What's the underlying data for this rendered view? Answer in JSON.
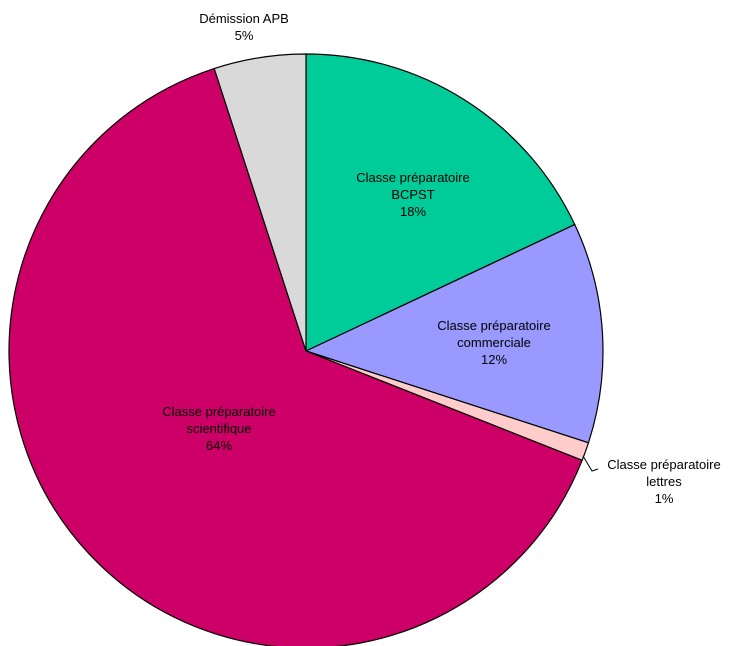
{
  "chart_data": {
    "type": "pie",
    "title": "",
    "legend": "none",
    "start_angle_deg": 0,
    "direction": "clockwise",
    "slices": [
      {
        "label": [
          "Classe préparatoire",
          "BCPST"
        ],
        "pct_text": "18%",
        "value": 18,
        "color": "#00CC99"
      },
      {
        "label": [
          "Classe préparatoire",
          "commerciale"
        ],
        "pct_text": "12%",
        "value": 12,
        "color": "#9999FF"
      },
      {
        "label": [
          "Classe préparatoire",
          "lettres"
        ],
        "pct_text": "1%",
        "value": 1,
        "color": "#FFCCCC"
      },
      {
        "label": [
          "Classe préparatoire",
          "scientifique"
        ],
        "pct_text": "64%",
        "value": 64,
        "color": "#CC0066"
      },
      {
        "label": [
          "Démission APB"
        ],
        "pct_text": "5%",
        "value": 5,
        "color": "#D9D9D9"
      }
    ]
  }
}
